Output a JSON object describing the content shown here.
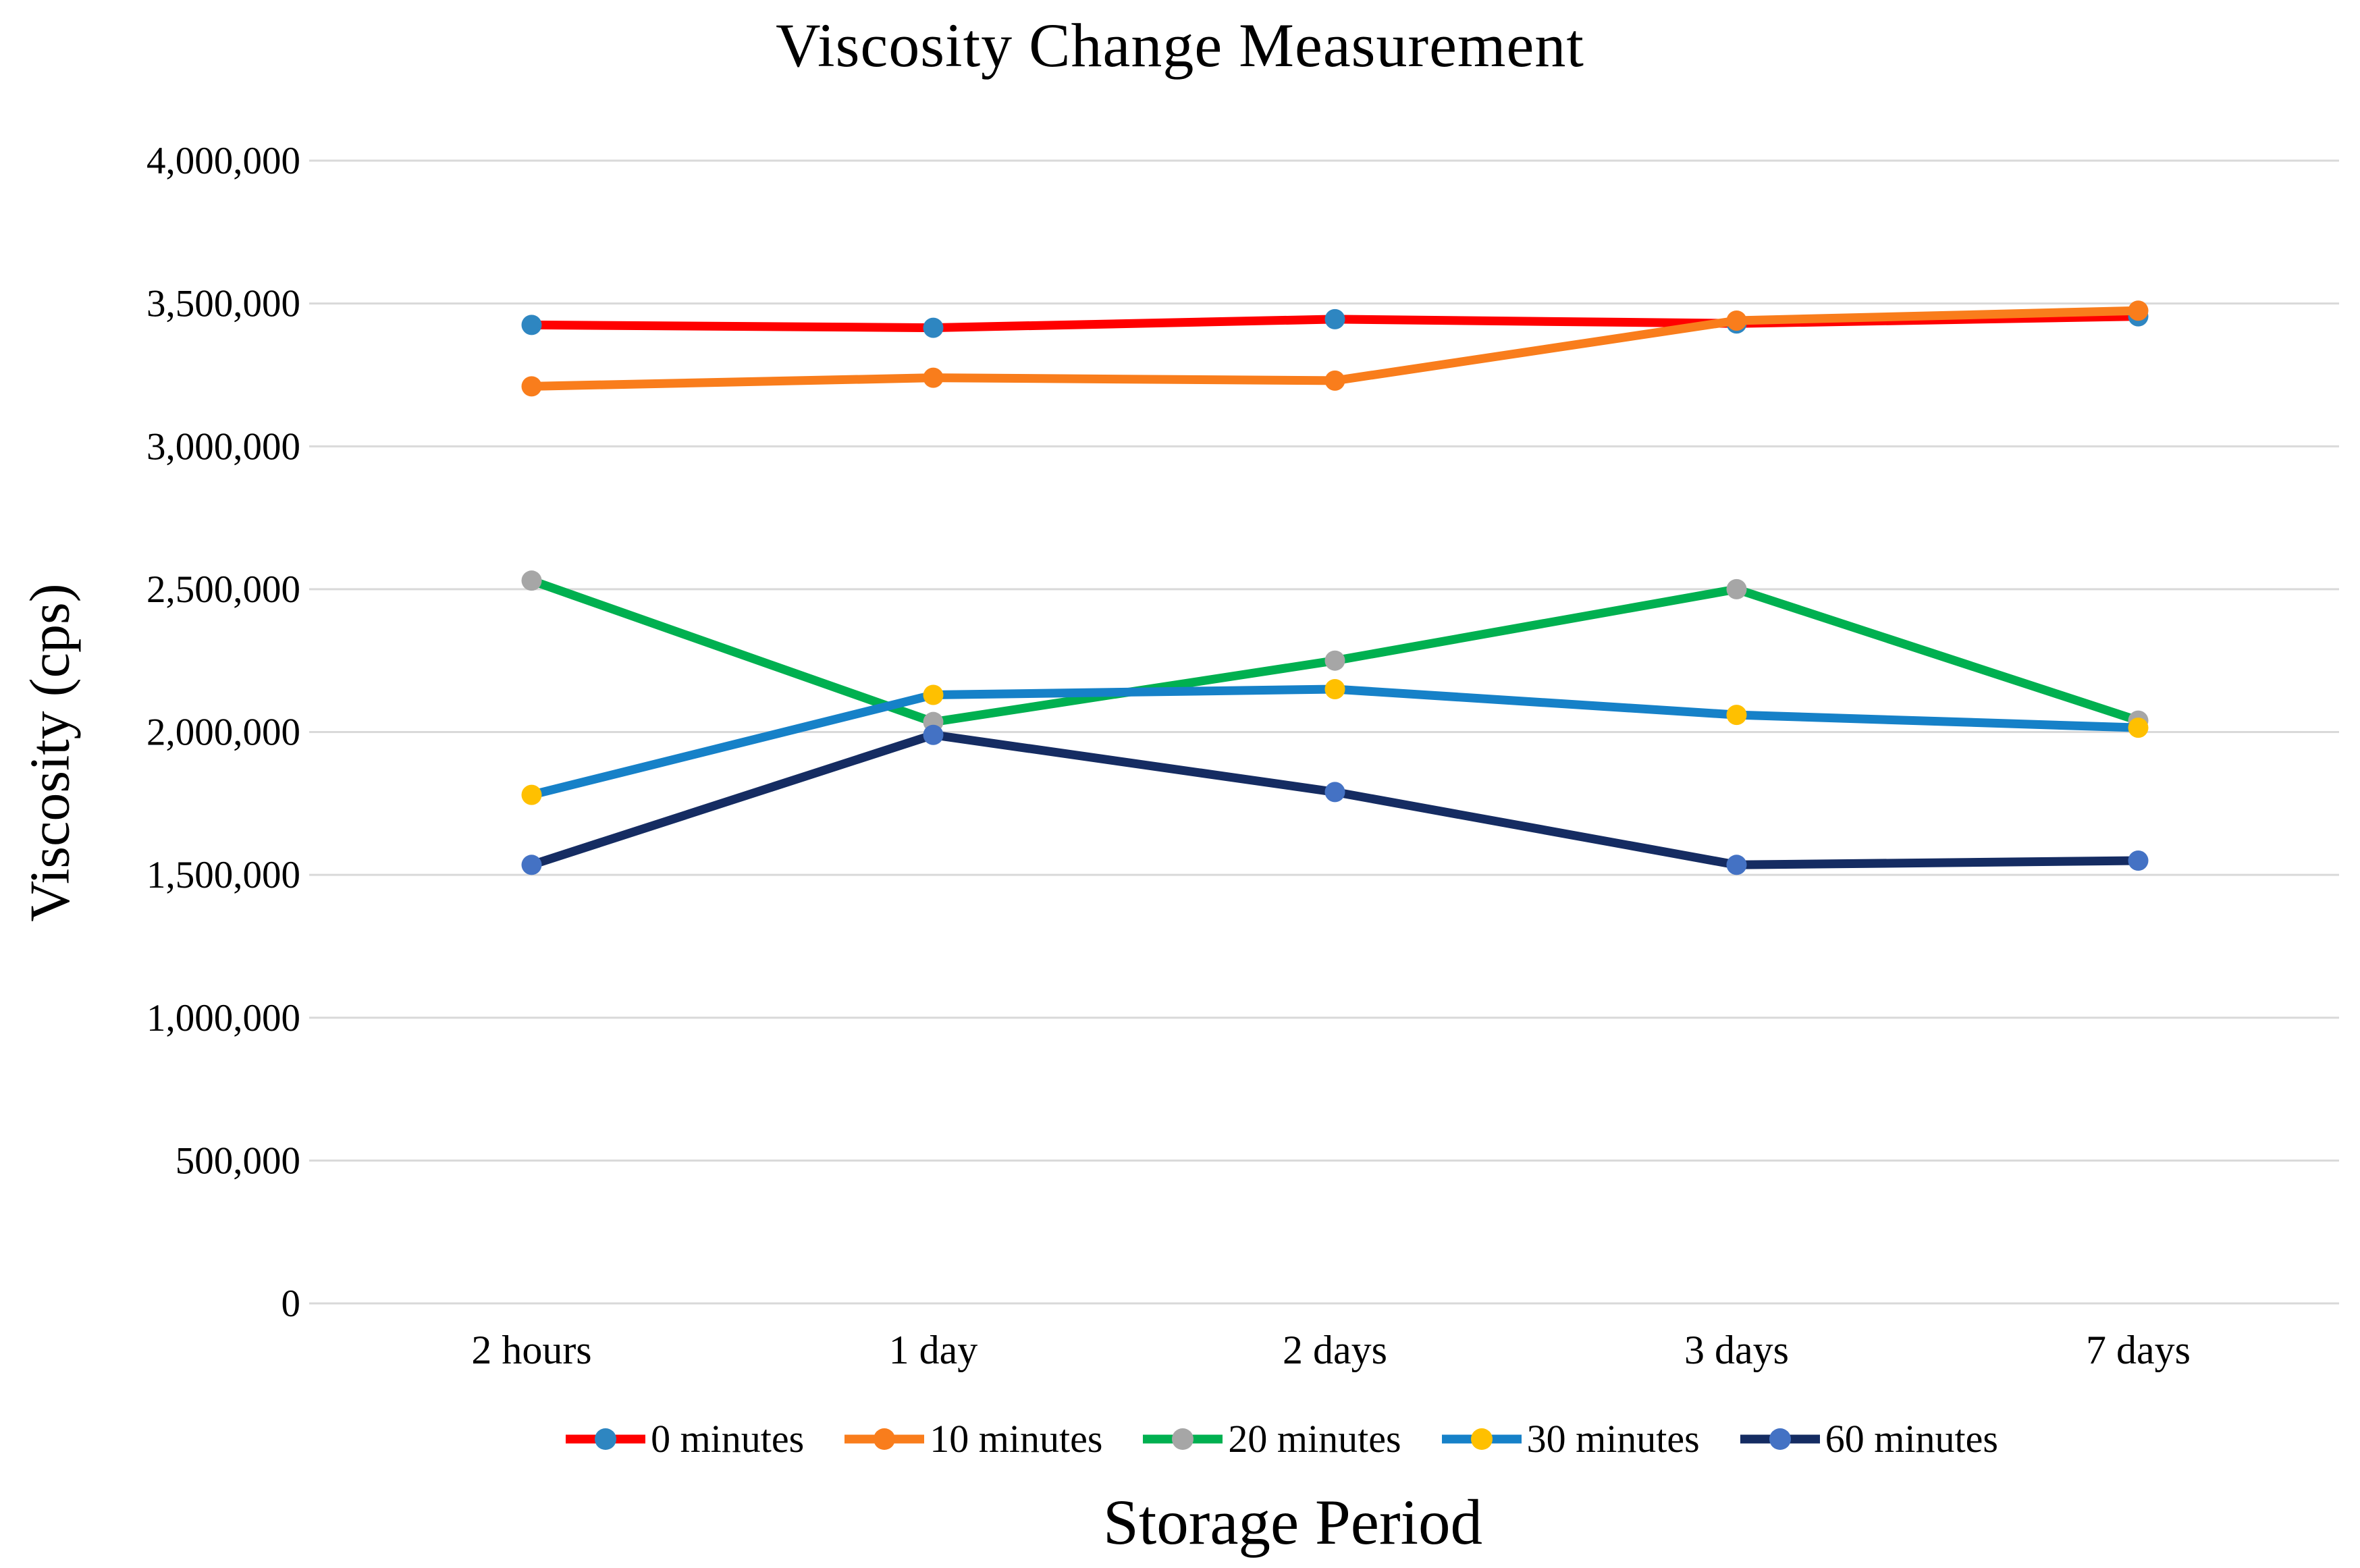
{
  "page": {
    "title": "Viscosity Change Measurement"
  },
  "chart_data": {
    "type": "line",
    "title": "Viscosity Change Measurement",
    "xlabel": "Storage Period",
    "ylabel": "Viscosity (cps)",
    "categories": [
      "2 hours",
      "1 day",
      "2 days",
      "3 days",
      "7 days"
    ],
    "series": [
      {
        "name": "0 minutes",
        "line_color": "#FF0000",
        "marker_color": "#2E86C1",
        "values": [
          3425000,
          3415000,
          3445000,
          3430000,
          3455000
        ]
      },
      {
        "name": "10 minutes",
        "line_color": "#F97D1C",
        "marker_color": "#F97D1C",
        "values": [
          3210000,
          3240000,
          3230000,
          3440000,
          3475000
        ]
      },
      {
        "name": "20 minutes",
        "line_color": "#00B050",
        "marker_color": "#A6A6A6",
        "values": [
          2530000,
          2035000,
          2250000,
          2500000,
          2040000
        ]
      },
      {
        "name": "30 minutes",
        "line_color": "#1681C8",
        "marker_color": "#FFC000",
        "values": [
          1780000,
          2130000,
          2150000,
          2060000,
          2015000
        ]
      },
      {
        "name": "60 minutes",
        "line_color": "#152C62",
        "marker_color": "#4472C4",
        "values": [
          1535000,
          1990000,
          1790000,
          1535000,
          1550000
        ]
      }
    ],
    "ylim": [
      0,
      4000000
    ],
    "ytick_step": 500000,
    "ytick_labels": [
      "0",
      "500,000",
      "1,000,000",
      "1,500,000",
      "2,000,000",
      "2,500,000",
      "3,000,000",
      "3,500,000",
      "4,000,000"
    ],
    "xtick_labels": [
      "2 hours",
      "1 day",
      "2 days",
      "3 days",
      "7 days"
    ],
    "grid": true,
    "gridline_color": "#D9D9D9",
    "legend_position": "bottom"
  }
}
